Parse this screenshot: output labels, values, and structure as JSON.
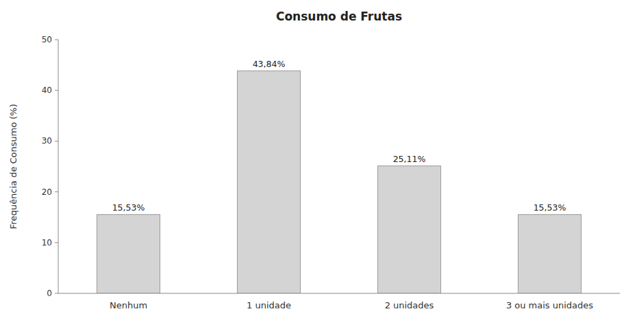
{
  "chart_data": {
    "type": "bar",
    "title": "Consumo de Frutas",
    "categories": [
      "Nenhum",
      "1 unidade",
      "2 unidades",
      "3 ou mais unidades"
    ],
    "values": [
      15.53,
      43.84,
      25.11,
      15.53
    ],
    "value_labels": [
      "15,53%",
      "43,84%",
      "25,11%",
      "15,53%"
    ],
    "data_labels": true,
    "color": "#d4d4d4",
    "ylabel": "Frequência de Consumo (%)",
    "ylim": [
      0,
      50
    ],
    "yticks": [
      0,
      10,
      20,
      30,
      40,
      50
    ],
    "grid": false
  }
}
